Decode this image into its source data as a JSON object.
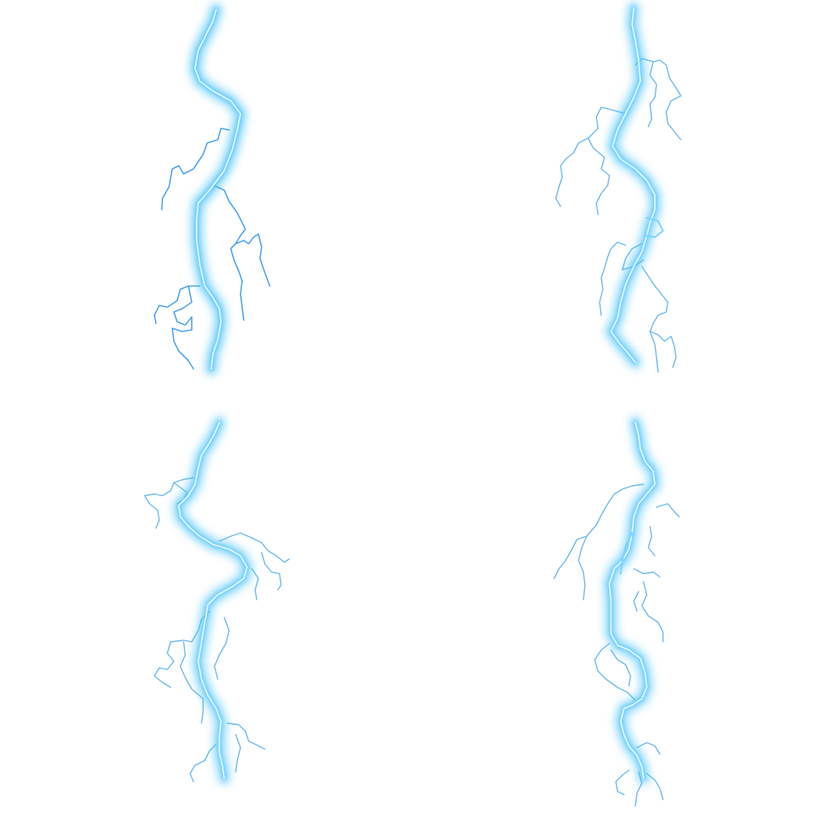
{
  "image": {
    "subject": "lightning-bolts",
    "background_color": "#ffffff",
    "glow_color": "#38bdf8",
    "core_color": "#e0f7ff",
    "branch_color": "#3b9eea"
  },
  "bolts": [
    {
      "id": "bolt-1"
    },
    {
      "id": "bolt-2"
    },
    {
      "id": "bolt-3"
    },
    {
      "id": "bolt-4"
    }
  ]
}
